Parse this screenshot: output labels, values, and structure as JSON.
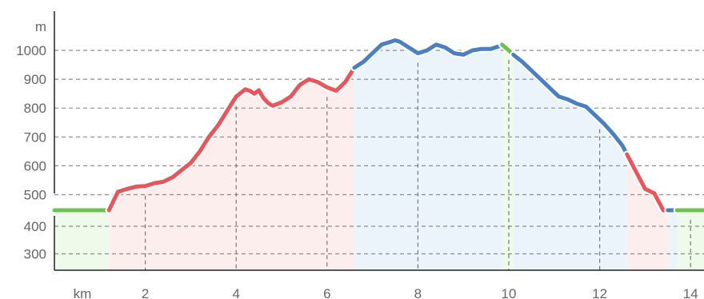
{
  "chart_data": {
    "type": "area",
    "title": "",
    "xlabel": "km",
    "ylabel": "m",
    "xlim": [
      0,
      14.3
    ],
    "ylim": [
      240,
      1090
    ],
    "x_ticks": [
      2,
      4,
      6,
      8,
      10,
      12,
      14
    ],
    "y_ticks": [
      300,
      400,
      500,
      600,
      700,
      800,
      900,
      1000
    ],
    "y_gap_between": [
      400,
      500
    ],
    "grid": true,
    "legend": "none",
    "colors": {
      "green": "#6cc24a",
      "red": "#e8555a",
      "blue": "#4a7fc1",
      "green_fill": "#eefaea",
      "red_fill": "#fdeeee",
      "blue_fill": "#ebf3fb"
    },
    "segments": [
      {
        "color": "green",
        "x_start": 0.0,
        "x_end": 1.2
      },
      {
        "color": "red",
        "x_start": 1.2,
        "x_end": 6.6
      },
      {
        "color": "blue",
        "x_start": 6.6,
        "x_end": 9.85
      },
      {
        "color": "green",
        "x_start": 9.85,
        "x_end": 10.1
      },
      {
        "color": "blue",
        "x_start": 10.1,
        "x_end": 12.6
      },
      {
        "color": "red",
        "x_start": 12.6,
        "x_end": 13.5
      },
      {
        "color": "blue",
        "x_start": 13.5,
        "x_end": 13.7
      },
      {
        "color": "green",
        "x_start": 13.7,
        "x_end": 14.3
      }
    ],
    "x": [
      0.0,
      0.1,
      0.2,
      0.4,
      0.6,
      0.8,
      1.0,
      1.2,
      1.4,
      1.6,
      1.8,
      2.0,
      2.2,
      2.4,
      2.6,
      2.8,
      3.0,
      3.2,
      3.4,
      3.6,
      3.8,
      4.0,
      4.2,
      4.3,
      4.4,
      4.5,
      4.6,
      4.7,
      4.8,
      5.0,
      5.2,
      5.4,
      5.6,
      5.8,
      6.0,
      6.2,
      6.4,
      6.6,
      6.8,
      7.0,
      7.2,
      7.4,
      7.5,
      7.6,
      7.8,
      8.0,
      8.2,
      8.4,
      8.6,
      8.8,
      9.0,
      9.2,
      9.4,
      9.6,
      9.8,
      9.85,
      10.0,
      10.1,
      10.3,
      10.5,
      10.7,
      10.9,
      11.1,
      11.3,
      11.5,
      11.7,
      11.9,
      12.1,
      12.3,
      12.5,
      12.6,
      12.8,
      13.0,
      13.2,
      13.4,
      13.5,
      13.6,
      13.7,
      13.9,
      14.1,
      14.3
    ],
    "y": [
      470,
      460,
      470,
      485,
      490,
      488,
      492,
      495,
      510,
      520,
      528,
      530,
      540,
      545,
      560,
      585,
      610,
      650,
      700,
      740,
      790,
      840,
      865,
      860,
      850,
      862,
      835,
      818,
      808,
      820,
      840,
      880,
      900,
      890,
      872,
      860,
      890,
      940,
      960,
      990,
      1020,
      1030,
      1035,
      1030,
      1010,
      990,
      1000,
      1020,
      1010,
      990,
      985,
      1000,
      1005,
      1005,
      1015,
      1020,
      1000,
      985,
      960,
      930,
      900,
      870,
      840,
      830,
      815,
      805,
      775,
      745,
      710,
      670,
      640,
      580,
      520,
      505,
      480,
      475,
      478,
      482,
      485,
      480,
      470
    ]
  }
}
